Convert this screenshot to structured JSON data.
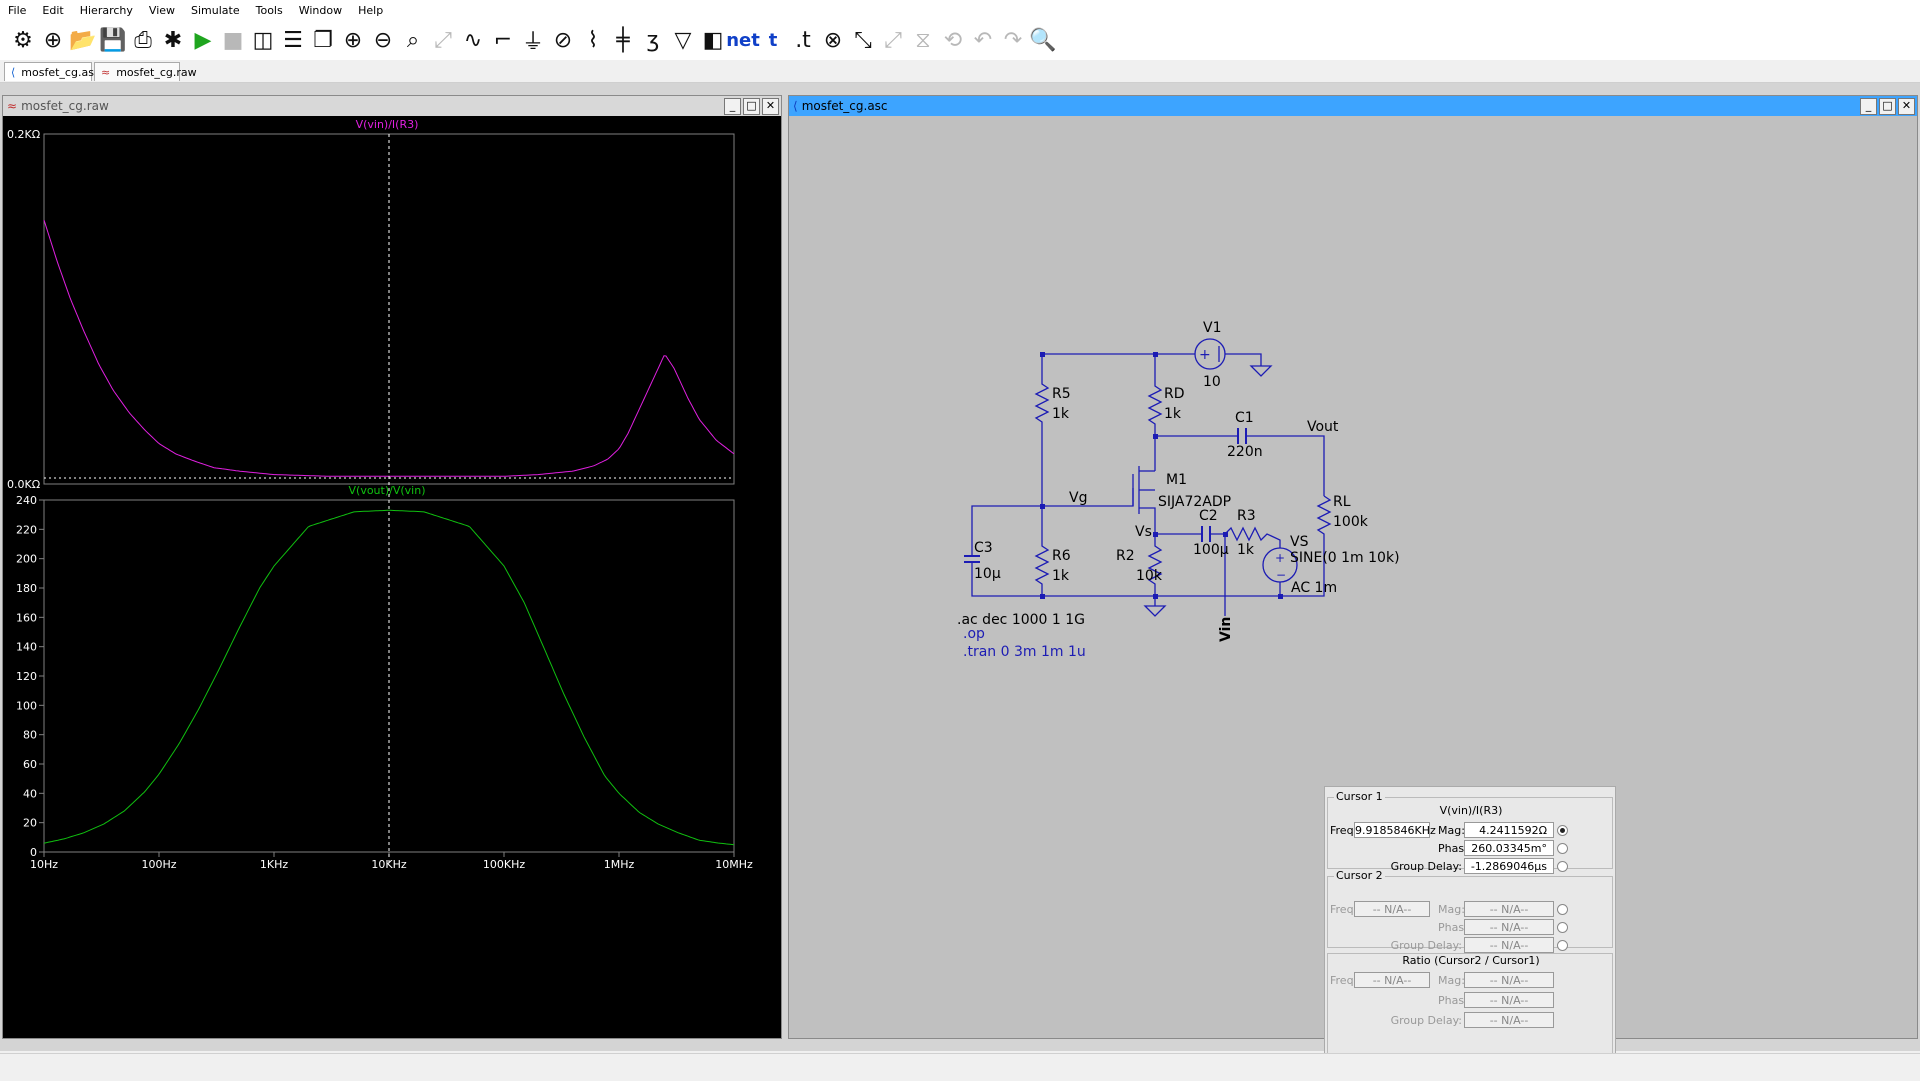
{
  "menu": [
    "File",
    "Edit",
    "Hierarchy",
    "View",
    "Simulate",
    "Tools",
    "Window",
    "Help"
  ],
  "toolbar_icons": [
    "control-panel-icon",
    "new-schematic-icon",
    "open-icon",
    "save-icon",
    "print-icon",
    "edit-sim-cmd-icon",
    "run-icon",
    "halt-icon",
    "tile-vertical-icon",
    "tile-horizontal-icon",
    "cascade-icon",
    "zoom-in-icon",
    "zoom-out-icon",
    "zoom-fit-icon",
    "zoom-full-icon",
    "autorange-icon",
    "wire-icon",
    "ground-icon",
    "label-net-icon",
    "resistor-icon",
    "capacitor-icon",
    "inductor-icon",
    "diode-icon",
    "component-icon",
    "net-label-icon",
    "text-icon",
    "spice-directive-icon",
    "delete-icon",
    "move-icon",
    "drag-icon",
    "mirror-icon",
    "rotate-icon",
    "undo-icon",
    "redo-icon",
    "find-icon"
  ],
  "tabs": [
    {
      "label": "mosfet_cg.asc",
      "icon": "schematic-tab-icon"
    },
    {
      "label": "mosfet_cg.raw",
      "icon": "waveform-tab-icon"
    }
  ],
  "waveform_window": {
    "title": "mosfet_cg.raw",
    "top_pane": {
      "trace_label": "V(vin)/I(R3)",
      "y_top_label": "0.2KΩ",
      "y_bottom_label": "0.0KΩ",
      "trace_color": "#e020e0"
    },
    "bottom_pane": {
      "trace_label": "V(vout)/V(vin)",
      "y_ticks": [
        "240",
        "220",
        "200",
        "180",
        "160",
        "140",
        "120",
        "100",
        "80",
        "60",
        "40",
        "20",
        "0"
      ],
      "trace_color": "#10c010"
    },
    "x_ticks": [
      "10Hz",
      "100Hz",
      "1KHz",
      "10KHz",
      "100KHz",
      "1MHz",
      "10MHz"
    ]
  },
  "schematic_window": {
    "title": "mosfet_cg.asc",
    "labels": {
      "v1": "V1",
      "v1_val": "10",
      "r5": "R5",
      "r5_val": "1k",
      "rd": "RD",
      "rd_val": "1k",
      "c1": "C1",
      "c1_val": "220n",
      "vout": "Vout",
      "m1": "M1",
      "m1_val": "SIJA72ADP",
      "vg": "Vg",
      "rl": "RL",
      "rl_val": "100k",
      "vs_node": "Vs",
      "c2": "C2",
      "c2_val": "100µ",
      "r3": "R3",
      "r3_val": "1k",
      "vs": "VS",
      "vs_val": "SINE(0 1m 10k)",
      "vs_ac": "AC 1m",
      "c3": "C3",
      "c3_val": "10µ",
      "r6": "R6",
      "r6_val": "1k",
      "r2": "R2",
      "r2_val": "10k",
      "vin": "Vin"
    },
    "directives": {
      "ac": ".ac dec 1000 1 1G",
      "op": ".op",
      "tran": ".tran 0 3m 1m 1u"
    }
  },
  "cursor_panel": {
    "cursor1": {
      "title": "Cursor 1",
      "trace": "V(vin)/I(R3)",
      "freq_label": "Freq:",
      "freq": "9.9185846KHz",
      "mag_label": "Mag:",
      "mag": "4.2411592Ω",
      "phase_label": "Phase:",
      "phase": "260.03345m°",
      "gd_label": "Group Delay:",
      "gd": "-1.2869046µs"
    },
    "cursor2": {
      "title": "Cursor 2",
      "freq_label": "Freq:",
      "freq": "-- N/A--",
      "mag_label": "Mag:",
      "mag": "-- N/A--",
      "phase_label": "Phase:",
      "phase": "-- N/A--",
      "gd_label": "Group Delay:",
      "gd": "-- N/A--"
    },
    "ratio": {
      "title": "Ratio (Cursor2 / Cursor1)",
      "freq_label": "Freq:",
      "freq": "-- N/A--",
      "mag_label": "Mag:",
      "mag": "-- N/A--",
      "phase_label": "Phase:",
      "phase": "-- N/A--",
      "gd_label": "Group Delay:",
      "gd": "-- N/A--"
    }
  },
  "chart_data": [
    {
      "type": "line",
      "title": "V(vin)/I(R3)",
      "xscale": "log",
      "xlim": [
        "10Hz",
        "10MHz"
      ],
      "ylim": [
        0,
        200
      ],
      "yunit": "Ω",
      "series": [
        {
          "name": "V(vin)/I(R3)",
          "x": [
            10,
            13,
            17,
            22,
            30,
            40,
            55,
            75,
            100,
            140,
            200,
            300,
            500,
            1000,
            3000,
            10000,
            50000,
            100000,
            200000,
            400000,
            600000,
            800000,
            1000000,
            1200000,
            1500000,
            2000000,
            2500000,
            3000000,
            4000000,
            5000000,
            7000000,
            10000000
          ],
          "values": [
            150,
            126,
            104,
            86,
            66,
            51,
            38,
            28,
            20,
            14,
            10,
            6,
            4,
            2,
            1,
            1,
            1,
            1,
            2,
            4,
            7,
            11,
            17,
            26,
            40,
            58,
            72,
            64,
            46,
            34,
            22,
            14
          ]
        }
      ]
    },
    {
      "type": "line",
      "title": "V(vout)/V(vin)",
      "xscale": "log",
      "xlim": [
        "10Hz",
        "10MHz"
      ],
      "ylim": [
        0,
        240
      ],
      "series": [
        {
          "name": "V(vout)/V(vin)",
          "x": [
            10,
            15,
            22,
            33,
            50,
            75,
            100,
            150,
            220,
            330,
            500,
            750,
            1000,
            2000,
            5000,
            10000,
            20000,
            50000,
            100000,
            150000,
            220000,
            330000,
            500000,
            750000,
            1000000,
            1500000,
            2200000,
            3300000,
            5000000,
            7500000,
            10000000
          ],
          "values": [
            6,
            9,
            13,
            19,
            28,
            41,
            53,
            74,
            97,
            124,
            153,
            180,
            195,
            222,
            232,
            233,
            232,
            222,
            195,
            170,
            140,
            108,
            78,
            52,
            40,
            27,
            19,
            13,
            8,
            6,
            5
          ]
        }
      ]
    }
  ]
}
